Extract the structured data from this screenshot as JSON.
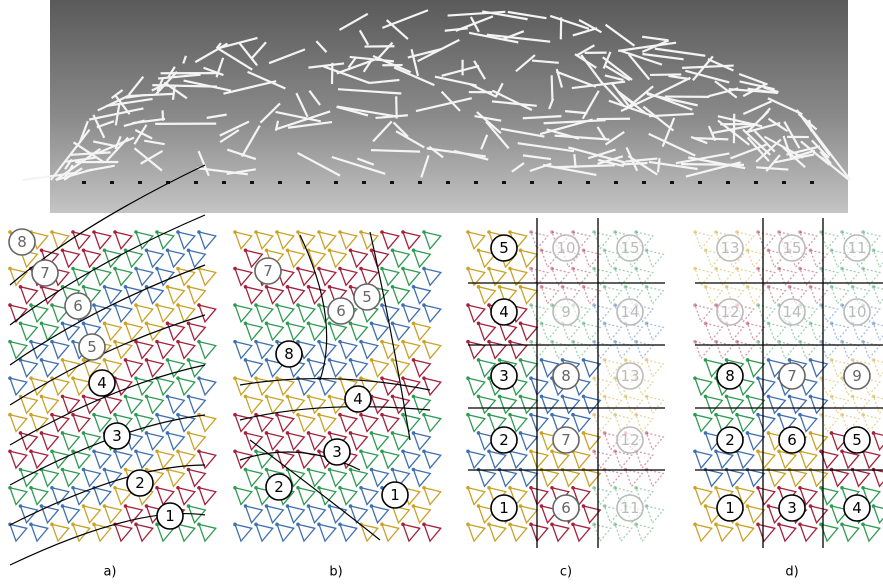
{
  "panels": [
    {
      "caption": "a)",
      "labels": [
        8,
        7,
        6,
        5,
        4,
        3,
        2,
        1
      ]
    },
    {
      "caption": "b)",
      "labels": [
        7,
        6,
        5,
        8,
        4,
        3,
        2,
        1
      ]
    },
    {
      "caption": "c)",
      "labels": [
        5,
        10,
        15,
        4,
        9,
        14,
        3,
        8,
        13,
        2,
        7,
        12,
        1,
        6,
        11
      ]
    },
    {
      "caption": "d)",
      "labels": [
        13,
        15,
        11,
        12,
        14,
        10,
        8,
        7,
        9,
        2,
        6,
        5,
        1,
        3,
        4
      ]
    }
  ]
}
